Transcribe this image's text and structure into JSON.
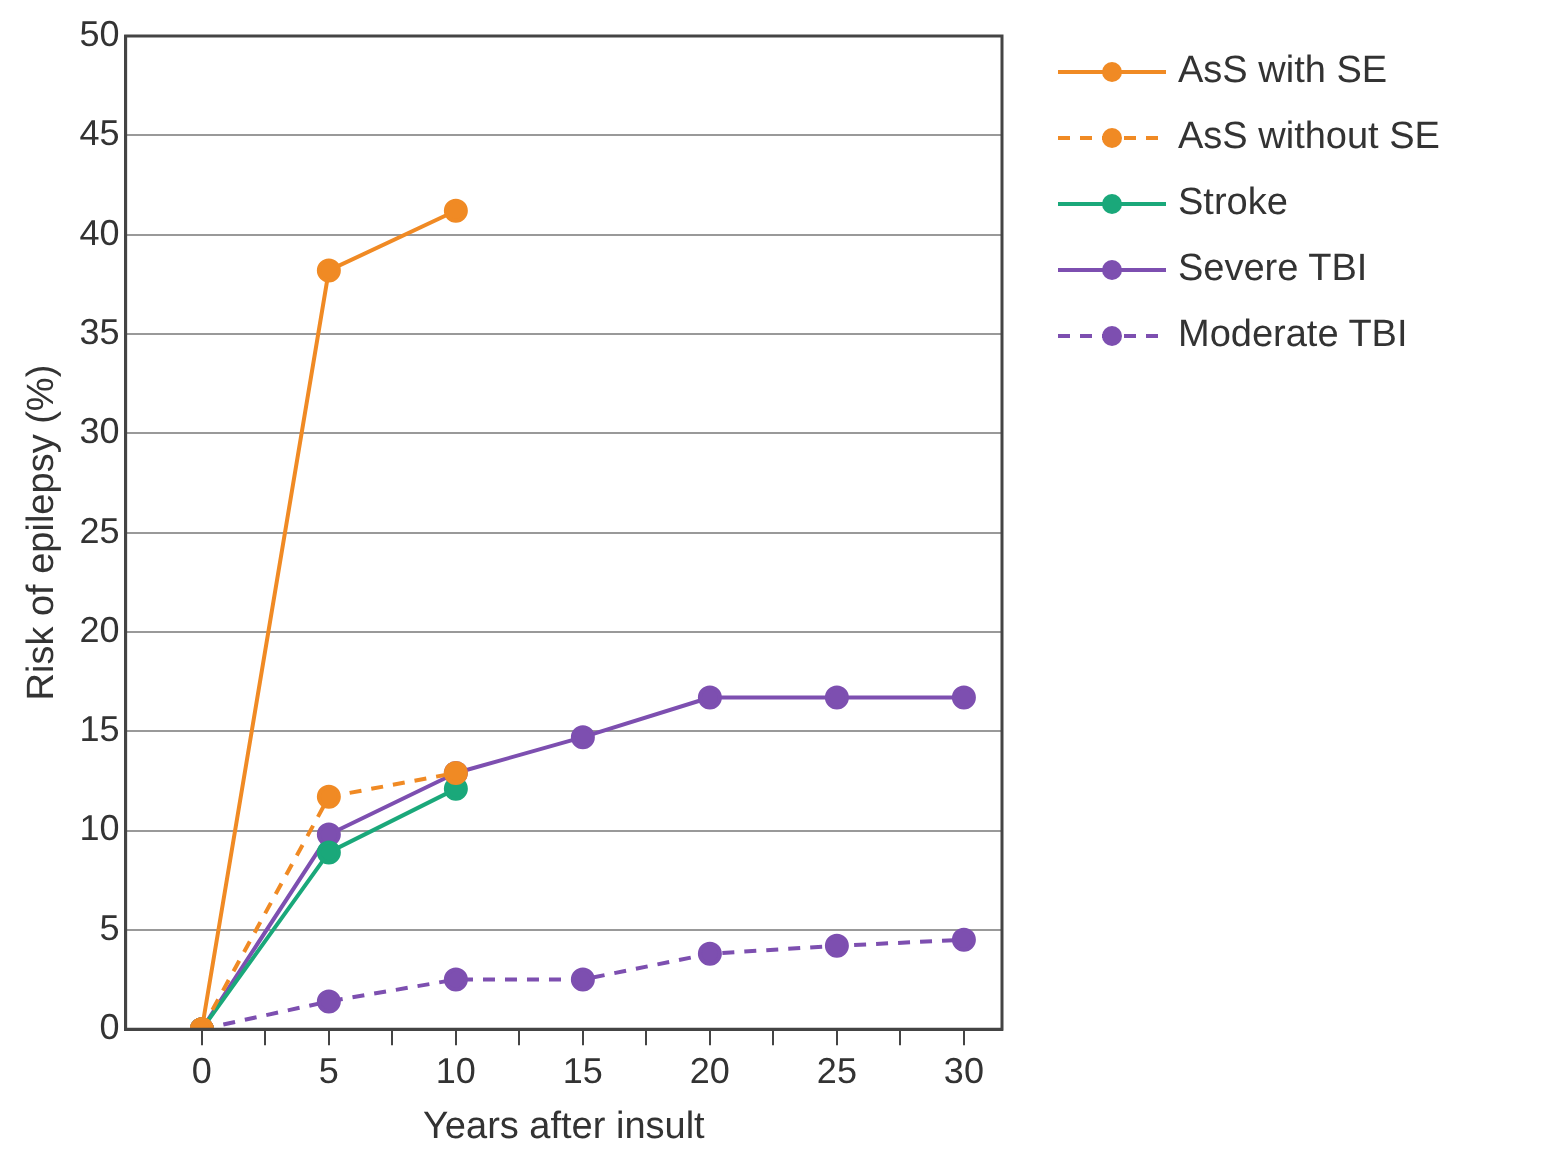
{
  "chart_data": {
    "type": "line",
    "xlabel": "Years after insult",
    "ylabel": "Risk of epilepsy (%)",
    "xlim": [
      -3,
      31.5
    ],
    "xticks": [
      0,
      {
        "value": 2.5,
        "label": null
      },
      5,
      {
        "value": 7.5,
        "label": null
      },
      10,
      {
        "value": 12.5,
        "label": null
      },
      15,
      {
        "value": 17.5,
        "label": null
      },
      20,
      {
        "value": 22.5,
        "label": null
      },
      25,
      {
        "value": 27.5,
        "label": null
      },
      30
    ],
    "ylim": [
      0,
      50
    ],
    "yticks": [
      0,
      5,
      10,
      15,
      20,
      25,
      30,
      35,
      40,
      45,
      50
    ],
    "grid": "y",
    "legend": "right",
    "marker": "circle",
    "series": [
      {
        "name": "AsS with SE",
        "color": "#f08a24",
        "line_style": "solid",
        "x": [
          0,
          5,
          10
        ],
        "values": [
          0,
          38.2,
          41.2
        ]
      },
      {
        "name": "AsS without SE",
        "color": "#f08a24",
        "line_style": "dashed",
        "x": [
          0,
          5,
          10
        ],
        "values": [
          0,
          11.7,
          12.9
        ]
      },
      {
        "name": "Stroke",
        "color": "#1aa87a",
        "line_style": "solid",
        "x": [
          0,
          5,
          10
        ],
        "values": [
          0,
          8.9,
          12.1
        ]
      },
      {
        "name": "Severe TBI",
        "color": "#7d4fb0",
        "line_style": "solid",
        "x": [
          0,
          5,
          10,
          15,
          20,
          25,
          30
        ],
        "values": [
          0,
          9.8,
          12.9,
          14.7,
          16.7,
          16.7,
          16.7
        ]
      },
      {
        "name": "Moderate TBI",
        "color": "#7d4fb0",
        "line_style": "dashed",
        "x": [
          0,
          5,
          10,
          15,
          20,
          25,
          30
        ],
        "values": [
          0,
          1.4,
          2.5,
          2.5,
          3.8,
          4.2,
          4.5
        ]
      }
    ]
  }
}
